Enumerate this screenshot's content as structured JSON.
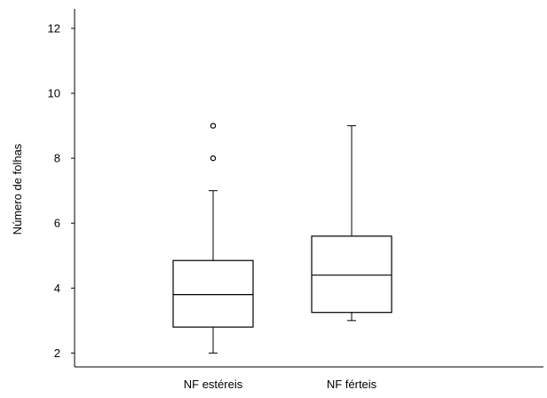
{
  "chart_data": {
    "type": "boxplot",
    "title": "",
    "xlabel": "",
    "ylabel": "Número de folhas",
    "ylim": [
      1.6,
      12.6
    ],
    "yticks": [
      2,
      4,
      6,
      8,
      10,
      12
    ],
    "grid": false,
    "categories": [
      "NF estéreis",
      "NF férteis"
    ],
    "boxes": [
      {
        "category": "NF estéreis",
        "whisker_low": 2,
        "q1": 2.8,
        "median": 3.8,
        "q3": 4.85,
        "whisker_high": 7,
        "outliers": [
          8,
          9
        ]
      },
      {
        "category": "NF férteis",
        "whisker_low": 3,
        "q1": 3.25,
        "median": 4.4,
        "q3": 5.6,
        "whisker_high": 9,
        "outliers": []
      }
    ],
    "colors": {
      "line": "#000000",
      "box_fill": "#ffffff",
      "background": "#ffffff"
    }
  }
}
